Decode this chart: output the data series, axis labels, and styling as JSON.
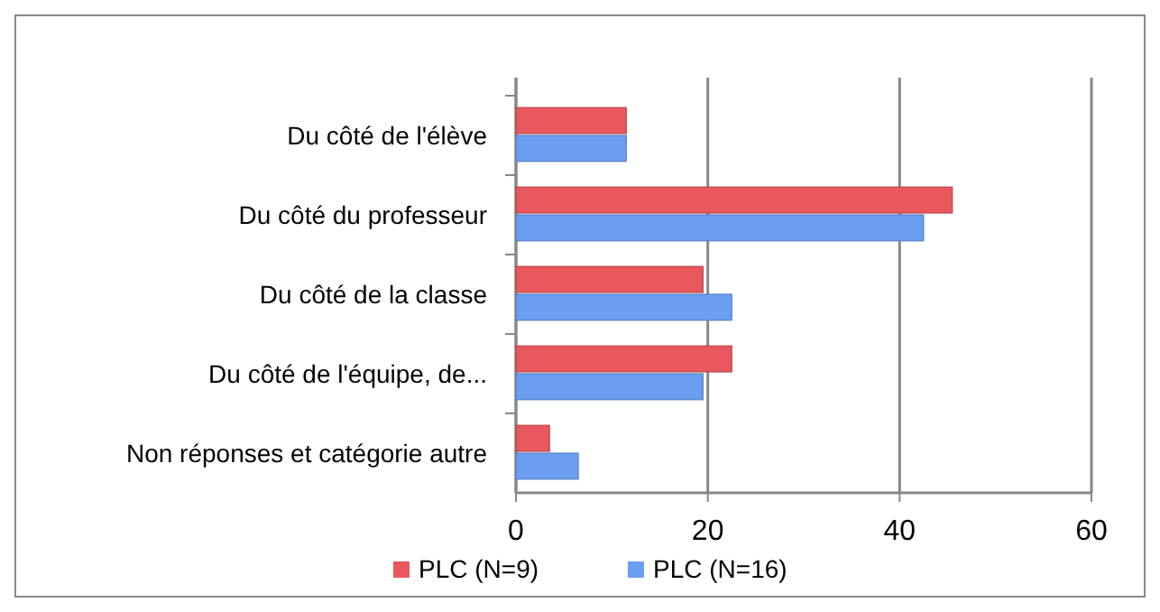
{
  "chart_data": {
    "type": "bar",
    "orientation": "horizontal",
    "categories": [
      "Du côté de l'élève",
      "Du côté du professeur",
      "Du côté de la classe",
      "Du côté de l'équipe, de...",
      "Non réponses et catégorie autre"
    ],
    "series": [
      {
        "name": "PLC (N=9)",
        "color": "#e8585c",
        "values": [
          11.5,
          45.5,
          19.5,
          22.5,
          3.5
        ]
      },
      {
        "name": "PLC (N=16)",
        "color": "#6a9ef0",
        "values": [
          11.5,
          42.5,
          22.5,
          19.5,
          6.5
        ]
      }
    ],
    "xlim": [
      0,
      60
    ],
    "xticks": [
      0,
      20,
      40,
      60
    ],
    "grid": "x",
    "legend": "bottom"
  }
}
